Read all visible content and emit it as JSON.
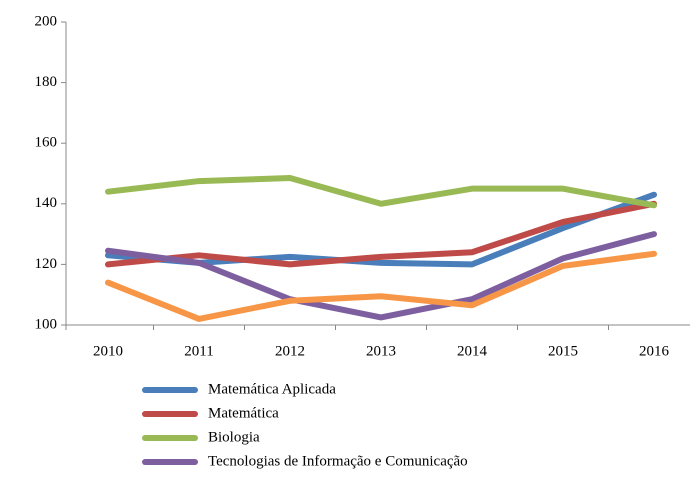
{
  "chart_data": {
    "type": "line",
    "categories": [
      "2010",
      "2011",
      "2012",
      "2013",
      "2014",
      "2015",
      "2016"
    ],
    "series": [
      {
        "name": "Matemática Aplicada",
        "color": "#4a7ebb",
        "values": [
          123,
          120.5,
          122.5,
          120.5,
          120,
          132,
          143
        ]
      },
      {
        "name": "Matemática",
        "color": "#be4b48",
        "values": [
          120,
          123,
          120,
          122.5,
          124,
          134,
          140
        ]
      },
      {
        "name": "Biologia",
        "color": "#98b954",
        "values": [
          144,
          147.5,
          148.5,
          140,
          145,
          145,
          139.5
        ]
      },
      {
        "name": "Tecnologias de Informação e Comunicação",
        "color": "#7d5fa0",
        "values": [
          124.5,
          120.5,
          108.5,
          102.5,
          108.5,
          122,
          130
        ]
      },
      {
        "color": "#f79646",
        "values": [
          114,
          102,
          108,
          109.5,
          106.5,
          119.5,
          123.5
        ]
      }
    ],
    "ylim": [
      100,
      200
    ],
    "yticks": [
      100,
      120,
      140,
      160,
      180,
      200
    ],
    "grid": false
  }
}
